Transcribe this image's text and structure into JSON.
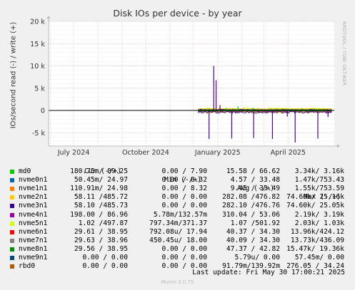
{
  "chart_data": {
    "type": "line",
    "title": "Disk IOs per device - by year",
    "ylabel": "IOs/second read (-) / write (+)",
    "ylim": [
      -8000,
      20000
    ],
    "yticks": [
      {
        "value": 20000,
        "label": "20 k"
      },
      {
        "value": 15000,
        "label": "15 k"
      },
      {
        "value": 10000,
        "label": "10 k"
      },
      {
        "value": 5000,
        "label": "5 k"
      },
      {
        "value": 0,
        "label": "0"
      },
      {
        "value": -5000,
        "label": "-5 k"
      }
    ],
    "xrange": [
      "2024-05-30",
      "2025-05-30"
    ],
    "xticks": [
      {
        "date": "2024-07-01",
        "label": "July 2024"
      },
      {
        "date": "2024-10-01",
        "label": "October 2024"
      },
      {
        "date": "2025-01-01",
        "label": "January 2025"
      },
      {
        "date": "2025-04-01",
        "label": "April 2025"
      }
    ],
    "grid": true,
    "legend_position": "bottom",
    "data_start": "2024-12-07",
    "spikes": [
      {
        "date": "2024-12-27",
        "value": 10000,
        "color": "#550084"
      },
      {
        "date": "2024-12-30",
        "value": 6800,
        "color": "#550084"
      },
      {
        "date": "2025-01-04",
        "value": 1200,
        "color": "#550084"
      },
      {
        "date": "2025-01-12",
        "value": 500,
        "color": "#00cc00"
      },
      {
        "date": "2025-01-27",
        "value": 900,
        "color": "#00cc00"
      },
      {
        "date": "2025-02-15",
        "value": 600,
        "color": "#00cc00"
      },
      {
        "date": "2024-12-21",
        "value": -6400,
        "color": "#550084"
      },
      {
        "date": "2025-01-19",
        "value": -6300,
        "color": "#550084"
      },
      {
        "date": "2025-02-16",
        "value": -6200,
        "color": "#550084"
      },
      {
        "date": "2025-03-12",
        "value": -6400,
        "color": "#550084"
      },
      {
        "date": "2025-04-10",
        "value": -7200,
        "color": "#550084"
      },
      {
        "date": "2025-05-09",
        "value": -6300,
        "color": "#550084"
      },
      {
        "date": "2025-03-31",
        "value": -1400,
        "color": "#550084"
      },
      {
        "date": "2025-05-22",
        "value": -1500,
        "color": "#550084"
      }
    ],
    "series": [
      {
        "name": "md0",
        "color": "#00cc00",
        "cur": "180.75m/ 89.25",
        "min": "0.00 / 7.90",
        "avg": "15.58 / 66.62",
        "max": "3.34k/ 3.16k"
      },
      {
        "name": "nvme0n1",
        "color": "#0066b3",
        "cur": "50.45m/ 24.97",
        "min": "0.00 / 8.32",
        "avg": "4.57 / 33.48",
        "max": "1.47k/753.43"
      },
      {
        "name": "nvme1n1",
        "color": "#ff8000",
        "cur": "110.91m/ 24.98",
        "min": "0.00 / 8.32",
        "avg": "9.45 / 33.49",
        "max": "1.55k/753.59"
      },
      {
        "name": "nvme2n1",
        "color": "#ffcc00",
        "cur": "58.11 /485.72",
        "min": "0.00 / 0.00",
        "avg": "282.08 /476.82",
        "max": "74.60k/ 25.16k"
      },
      {
        "name": "nvme3n1",
        "color": "#330099",
        "cur": "58.10 /485.73",
        "min": "0.00 / 0.00",
        "avg": "282.10 /476.76",
        "max": "74.60k/ 25.05k"
      },
      {
        "name": "nvme4n1",
        "color": "#990099",
        "cur": "198.00 / 86.96",
        "min": "5.78m/132.57m",
        "avg": "310.04 / 53.06",
        "max": "2.19k/ 3.19k"
      },
      {
        "name": "nvme5n1",
        "color": "#ccff00",
        "cur": "1.02 /497.87",
        "min": "797.34m/371.37",
        "avg": "1.07 /501.92",
        "max": "2.03k/ 1.03k"
      },
      {
        "name": "nvme6n1",
        "color": "#ff0000",
        "cur": "29.61 / 38.95",
        "min": "792.08u/ 17.94",
        "avg": "40.37 / 34.30",
        "max": "13.96k/424.12"
      },
      {
        "name": "nvme7n1",
        "color": "#808080",
        "cur": "29.63 / 38.96",
        "min": "450.45u/ 18.00",
        "avg": "40.09 / 34.30",
        "max": "13.73k/436.09"
      },
      {
        "name": "nvme8n1",
        "color": "#008f00",
        "cur": "29.56 / 38.95",
        "min": "0.00 / 0.00",
        "avg": "47.37 / 42.82",
        "max": "15.47k/ 19.36k"
      },
      {
        "name": "nvme9n1",
        "color": "#00487d",
        "cur": "0.00 / 0.00",
        "min": "0.00 / 0.00",
        "avg": "5.79u/ 0.00",
        "max": "57.45m/ 0.00"
      },
      {
        "name": "rbd0",
        "color": "#b35a00",
        "cur": "0.00 / 0.00",
        "min": "0.00 / 0.00",
        "avg": "91.79m/139.92m",
        "max": "276.05 / 34.24"
      }
    ]
  },
  "legend_headers": {
    "cur": "Cur (-/+)",
    "min": "Min (-/+)",
    "avg": "Avg (-/+)",
    "max": "Max (-/+)"
  },
  "watermark": "RRDTOOL / TOBI OETIKER",
  "last_update": "Last update:  Fri May 30 17:00:21 2025",
  "footer": "Munin 2.0.75"
}
